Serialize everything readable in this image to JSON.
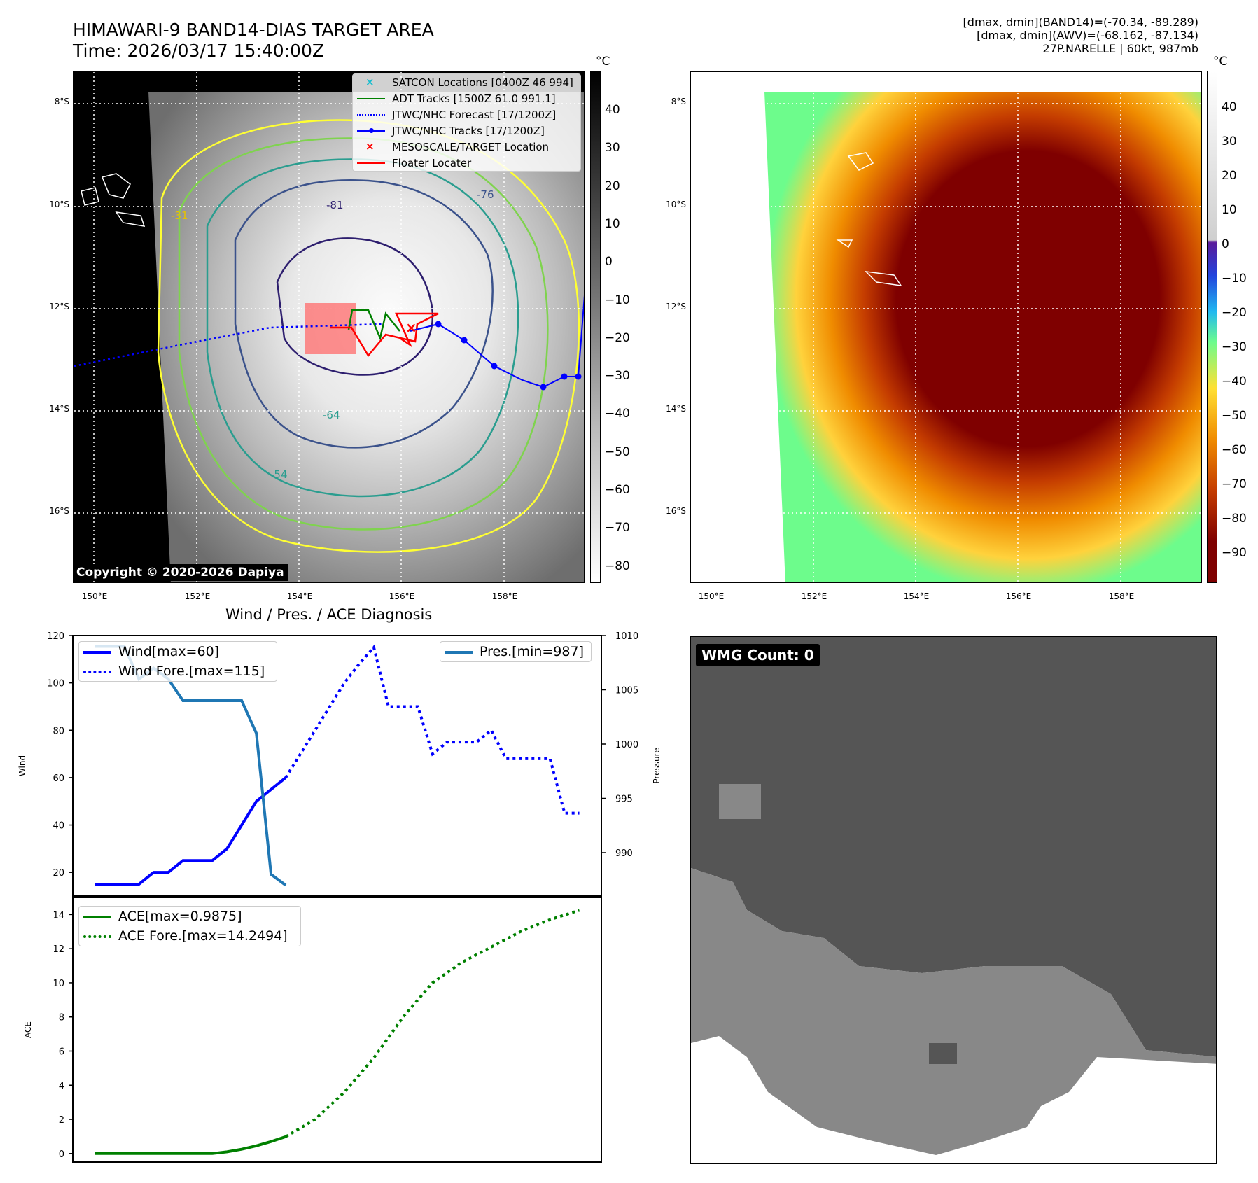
{
  "header": {
    "title_line1": "HIMAWARI-9 BAND14-DIAS TARGET AREA",
    "title_line2": "Time: 2026/03/17 15:40:00Z",
    "info_line1": "[dmax, dmin](BAND14)=(-70.34, -89.289)",
    "info_line2": "[dmax, dmin](AWV)=(-68.162, -87.134)",
    "info_line3": "27P.NARELLE | 60kt, 987mb"
  },
  "map": {
    "lat_labels": [
      "8°S",
      "10°S",
      "12°S",
      "14°S",
      "16°S"
    ],
    "lon_labels": [
      "150°E",
      "152°E",
      "154°E",
      "156°E",
      "158°E"
    ],
    "copyright": "Copyright © 2020-2026 Dapiya",
    "legend": [
      {
        "label": "SATCON Locations [0400Z 46 994]",
        "color": "#17becf",
        "kind": "x"
      },
      {
        "label": "ADT Tracks [1500Z 61.0 991.1]",
        "color": "#008000",
        "kind": "line"
      },
      {
        "label": "JTWC/NHC Forecast [17/1200Z]",
        "color": "#0000ff",
        "kind": "dotted"
      },
      {
        "label": "JTWC/NHC Tracks [17/1200Z]",
        "color": "#0000ff",
        "kind": "line-dot"
      },
      {
        "label": "MESOSCALE/TARGET Location",
        "color": "#ff0000",
        "kind": "x"
      },
      {
        "label": "Floater Locater",
        "color": "#ff0000",
        "kind": "line"
      }
    ],
    "contour_labels": [
      "-31",
      "-54",
      "-64",
      "-76",
      "-81"
    ],
    "colorbar_gray": {
      "unit": "°C",
      "ticks": [
        "40",
        "30",
        "20",
        "10",
        "0",
        "−10",
        "−20",
        "−30",
        "−40",
        "−50",
        "−60",
        "−70",
        "−80"
      ]
    },
    "colorbar_color": {
      "unit": "°C",
      "ticks": [
        "40",
        "30",
        "20",
        "10",
        "0",
        "−10",
        "−20",
        "−30",
        "−40",
        "−50",
        "−60",
        "−70",
        "−80",
        "−90"
      ]
    }
  },
  "chart_data": [
    {
      "type": "line",
      "title": "Wind / Pres. / ACE Diagnosis",
      "ylabel": "Wind",
      "y2label": "Pressure",
      "ylim": [
        10,
        120
      ],
      "y2lim": [
        986,
        1010
      ],
      "yticks": [
        "20",
        "40",
        "60",
        "80",
        "100",
        "120"
      ],
      "y2ticks": [
        "990",
        "995",
        "1000",
        "1005",
        "1010"
      ],
      "x": [
        0,
        1,
        2,
        3,
        4,
        5,
        6,
        7,
        8,
        9,
        10,
        11,
        12,
        13,
        14,
        15,
        16,
        17,
        18,
        19,
        20,
        21,
        22,
        23,
        24,
        25,
        26,
        27,
        28,
        29,
        30,
        31,
        32,
        33
      ],
      "series": [
        {
          "name": "Wind[max=60]",
          "axis": "left",
          "style": "solid",
          "color": "#0000ff",
          "x": [
            0,
            1,
            2,
            3,
            4,
            5,
            6,
            7,
            8,
            9,
            10,
            11,
            12,
            13
          ],
          "values": [
            15,
            15,
            15,
            15,
            20,
            20,
            25,
            25,
            25,
            30,
            40,
            50,
            55,
            60
          ]
        },
        {
          "name": "Wind Fore.[max=115]",
          "axis": "left",
          "style": "dotted",
          "color": "#0000ff",
          "x": [
            13,
            14,
            15,
            16,
            17,
            18,
            19,
            20,
            21,
            22,
            23,
            24,
            25,
            26,
            27,
            28,
            29,
            30,
            31,
            32,
            33
          ],
          "values": [
            60,
            70,
            80,
            90,
            100,
            108,
            115,
            90,
            90,
            90,
            70,
            75,
            75,
            75,
            80,
            68,
            68,
            68,
            68,
            45,
            45
          ]
        },
        {
          "name": "Pres.[min=987]",
          "axis": "right",
          "style": "solid",
          "color": "#1f77b4",
          "x": [
            0,
            1,
            2,
            3,
            4,
            5,
            6,
            7,
            8,
            9,
            10,
            11,
            12,
            13
          ],
          "values": [
            1009,
            1009,
            1009,
            1006,
            1007,
            1006,
            1004,
            1004,
            1004,
            1004,
            1004,
            1001,
            988,
            987
          ]
        }
      ]
    },
    {
      "type": "line",
      "ylabel": "ACE",
      "ylim": [
        -0.5,
        15
      ],
      "yticks": [
        "0",
        "2",
        "4",
        "6",
        "8",
        "10",
        "12",
        "14"
      ],
      "series": [
        {
          "name": "ACE[max=0.9875]",
          "style": "solid",
          "color": "#008000",
          "x": [
            0,
            1,
            2,
            3,
            4,
            5,
            6,
            7,
            8,
            9,
            10,
            11,
            12,
            13
          ],
          "values": [
            0,
            0,
            0,
            0,
            0,
            0,
            0,
            0,
            0,
            0.1,
            0.25,
            0.45,
            0.7,
            0.9875
          ]
        },
        {
          "name": "ACE Fore.[max=14.2494]",
          "style": "dotted",
          "color": "#008000",
          "x": [
            13,
            15,
            17,
            19,
            21,
            23,
            25,
            27,
            29,
            31,
            33
          ],
          "values": [
            0.9875,
            2.0,
            3.6,
            5.6,
            8.0,
            10.0,
            11.2,
            12.1,
            13.0,
            13.7,
            14.2494
          ]
        }
      ]
    }
  ],
  "wmg": {
    "label": "WMG Count: 0"
  }
}
